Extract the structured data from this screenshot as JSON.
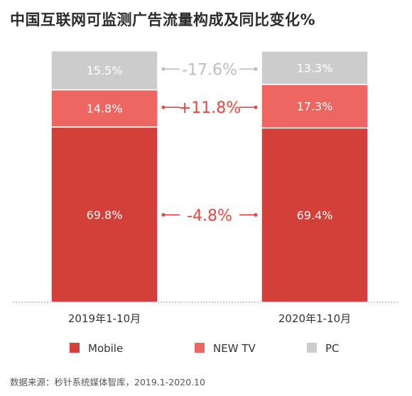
{
  "title": "中国互联网可监测广告流量构成及同比变化%",
  "source": "数据来源：秒针系统媒体智库，2019.1-2020.10",
  "colors": {
    "mobile": "#d3403a",
    "newtv": "#ee6661",
    "pc": "#cccccc",
    "pc_change": "#bdbdbd",
    "pos_change": "#e8473f"
  },
  "chart_data": {
    "type": "bar",
    "stacked": true,
    "categories": [
      "2019年1-10月",
      "2020年1-10月"
    ],
    "series": [
      {
        "name": "Mobile",
        "key": "mobile",
        "values": [
          69.8,
          69.4
        ],
        "labels": [
          "69.8%",
          "69.4%"
        ]
      },
      {
        "name": "NEW TV",
        "key": "newtv",
        "values": [
          14.8,
          17.3
        ],
        "labels": [
          "14.8%",
          "17.3%"
        ]
      },
      {
        "name": "PC",
        "key": "pc",
        "values": [
          15.5,
          13.3
        ],
        "labels": [
          "15.5%",
          "13.3%"
        ]
      }
    ],
    "changes": [
      {
        "series": "PC",
        "label": "-17.6%",
        "color_key": "pc_change"
      },
      {
        "series": "NEW TV",
        "label": "+11.8%",
        "color_key": "pos_change"
      },
      {
        "series": "Mobile",
        "label": "-4.8%",
        "color_key": "pos_change"
      }
    ],
    "ylim": [
      0,
      100
    ],
    "legend_position": "bottom",
    "grid": false
  }
}
